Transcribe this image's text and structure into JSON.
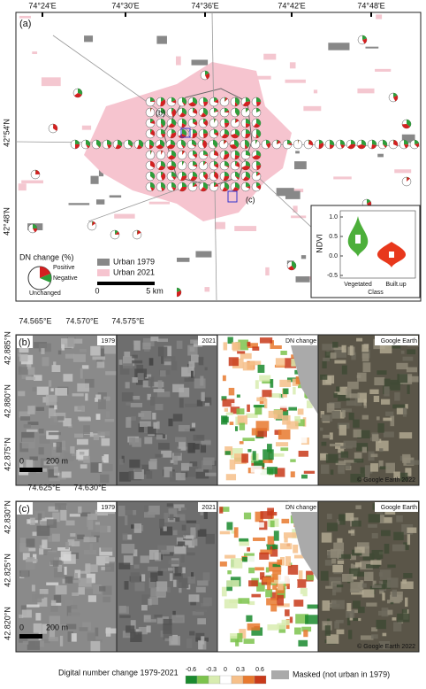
{
  "panel_a": {
    "label": "(a)",
    "lon_labels": [
      "74°24'E",
      "74°30'E",
      "74°36'E",
      "74°42'E",
      "74°48'E"
    ],
    "lat_labels": [
      "42°54'N",
      "42°48'N"
    ],
    "callouts": [
      "(b)",
      "(c)"
    ],
    "pie_legend": {
      "title": "DN change (%)",
      "items": [
        "Positive",
        "Negative",
        "Unchanged"
      ]
    },
    "urban_legend": [
      "Urban 1979",
      "Urban 2021"
    ],
    "scale": [
      "0",
      "5 km"
    ],
    "inset": {
      "y_label": "NDVI",
      "y_ticks": [
        "1.0",
        "0.5",
        "0.0",
        "-0.5"
      ],
      "categories": [
        "Vegetated",
        "Built.up"
      ],
      "x_label": "Class"
    }
  },
  "panel_b": {
    "label": "(b)",
    "lon_labels": [
      "74.565°E",
      "74.570°E",
      "74.575°E"
    ],
    "lat_labels": [
      "42.885°N",
      "42.880°N",
      "42.875°N"
    ],
    "image_titles": [
      "1979",
      "2021",
      "DN change",
      "Google Earth"
    ],
    "scale": [
      "0",
      "200 m"
    ],
    "credit": "© Google Earth 2022"
  },
  "panel_c": {
    "label": "(c)",
    "lon_labels": [
      "74.625°E",
      "74.630°E"
    ],
    "lat_labels": [
      "42.830°N",
      "42.825°N",
      "42.820°N"
    ],
    "image_titles": [
      "1979",
      "2021",
      "DN change",
      "Google Earth"
    ],
    "scale": [
      "0",
      "200 m"
    ],
    "credit": "© Google Earth 2022"
  },
  "colorbar": {
    "title": "Digital number change 1979-2021",
    "ticks": [
      "-0.6",
      "-0.3",
      "0",
      "0.3",
      "0.6"
    ],
    "masked": "Masked (not urban in 1979)"
  }
}
